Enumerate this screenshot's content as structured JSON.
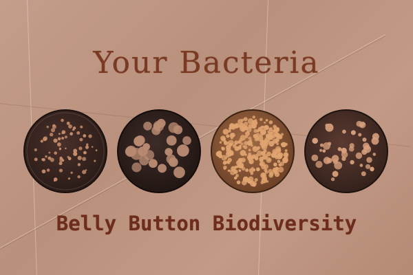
{
  "title": "Your Bacteria",
  "subtitle": "Belly Button Biodiversity",
  "colors": {
    "text": "#7a3a22",
    "paper": "#c49e8b",
    "dish_dark": "#3a2620",
    "colony_light": "#d8a585",
    "dish_amber": "#8a5a3a"
  },
  "dishes": [
    {
      "name": "petri-dish-1",
      "style": "small-colonies"
    },
    {
      "name": "petri-dish-2",
      "style": "large-colonies"
    },
    {
      "name": "petri-dish-3",
      "style": "dense-growth"
    },
    {
      "name": "petri-dish-4",
      "style": "mixed-colonies"
    }
  ]
}
